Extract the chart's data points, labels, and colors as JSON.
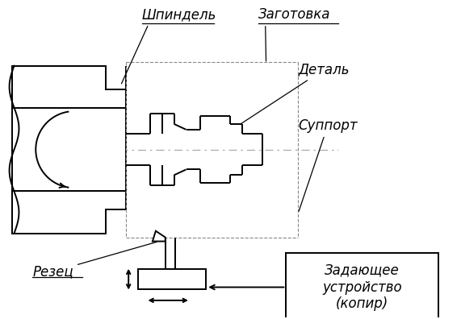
{
  "background_color": "#ffffff",
  "line_color": "#000000",
  "labels": {
    "shpindel": "Шпиндель",
    "zagotovka": "Заготовка",
    "detal": "Деталь",
    "support": "Суппорт",
    "rezets": "Резец",
    "zadayushee": "Задающее\nустройство\n(копир)"
  },
  "font_size": 12,
  "fig_width": 5.71,
  "fig_height": 3.96,
  "dpi": 100
}
